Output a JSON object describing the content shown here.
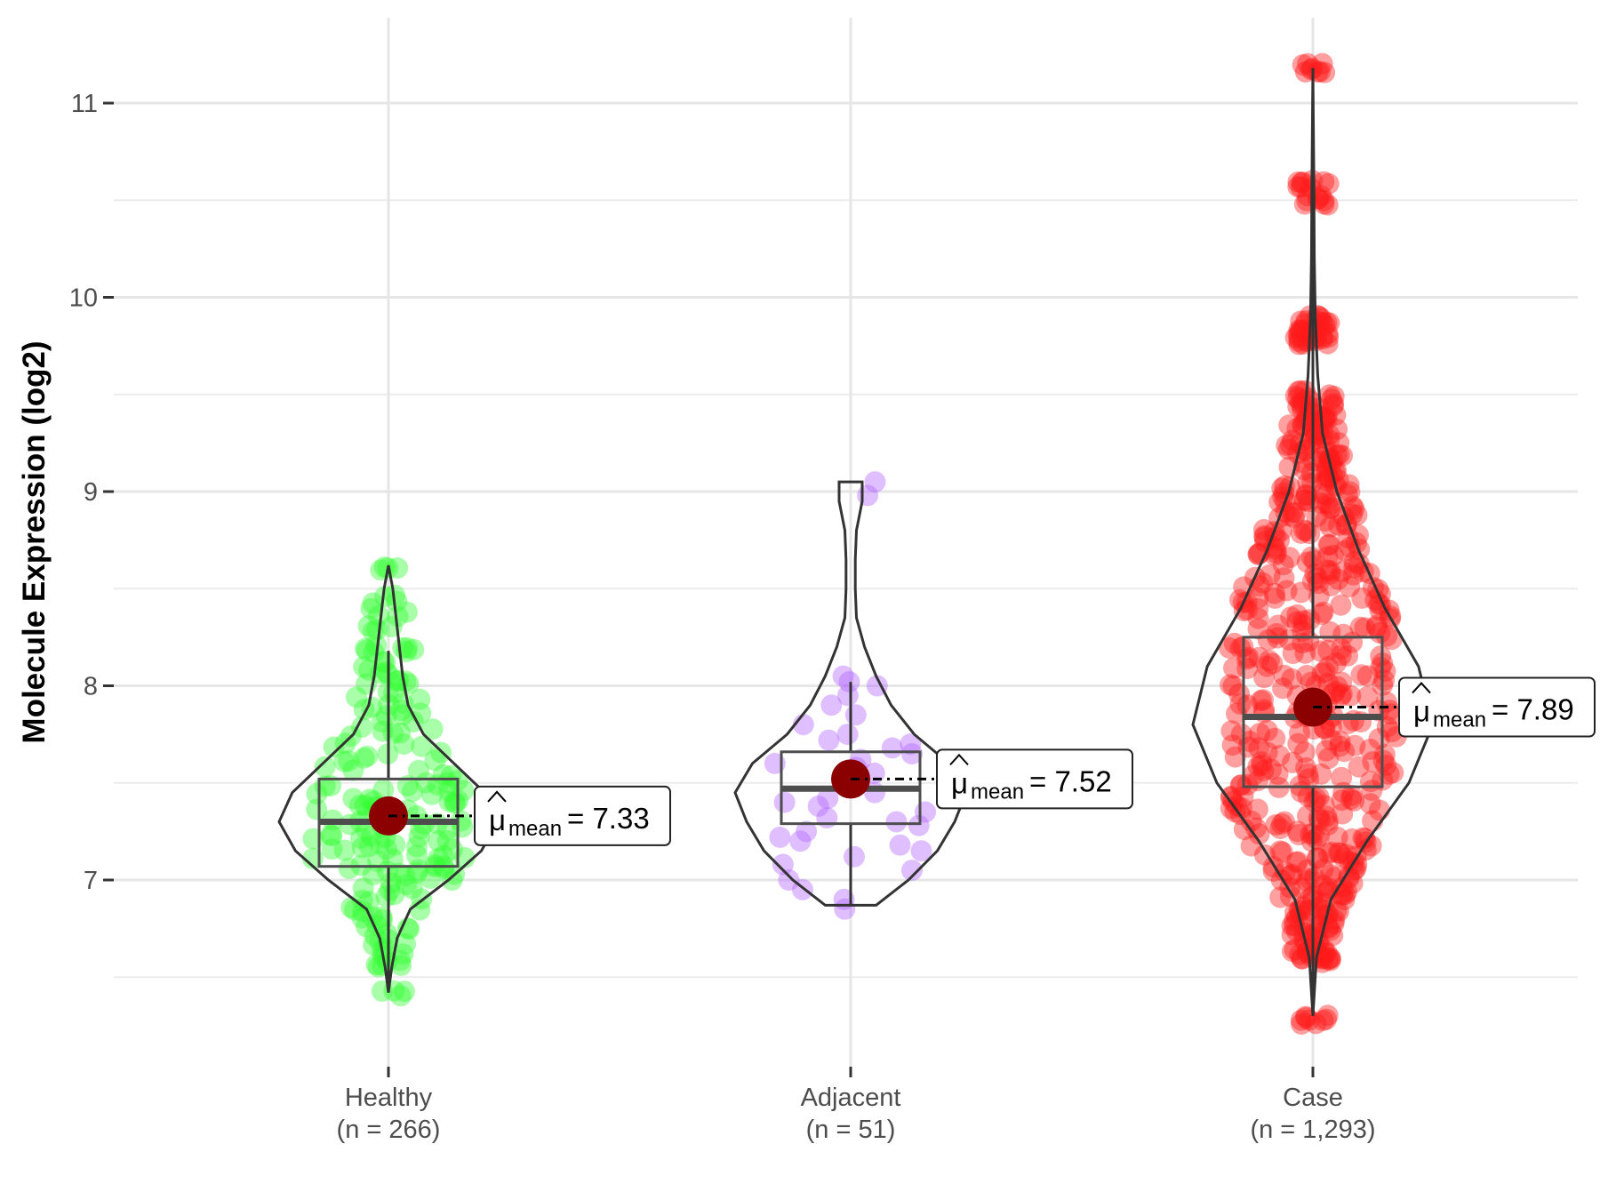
{
  "chart_data": {
    "type": "violin",
    "title": "",
    "xlabel": "",
    "ylabel": "Molecule Expression (log2)",
    "ylim": [
      6,
      11.5
    ],
    "yticks": [
      7,
      8,
      9,
      10,
      11
    ],
    "grid": true,
    "groups": [
      {
        "name": "Healthy",
        "n_label": "(n = 266)",
        "color": "#33ff33",
        "mean": 7.33,
        "mean_label": "= 7.33",
        "median": 7.3,
        "q1": 7.07,
        "q3": 7.52,
        "whisker_low": 6.45,
        "whisker_high": 8.18,
        "min": 6.42,
        "max": 8.62,
        "density": [
          [
            6.42,
            0.0
          ],
          [
            6.55,
            0.03
          ],
          [
            6.7,
            0.08
          ],
          [
            6.85,
            0.2
          ],
          [
            7.0,
            0.55
          ],
          [
            7.15,
            0.85
          ],
          [
            7.3,
            1.0
          ],
          [
            7.45,
            0.88
          ],
          [
            7.6,
            0.6
          ],
          [
            7.75,
            0.32
          ],
          [
            7.9,
            0.18
          ],
          [
            8.05,
            0.13
          ],
          [
            8.2,
            0.1
          ],
          [
            8.35,
            0.07
          ],
          [
            8.5,
            0.04
          ],
          [
            8.62,
            0.0
          ]
        ],
        "points": [
          6.42,
          6.55,
          6.6,
          6.65,
          6.7,
          6.75,
          6.8,
          6.85,
          6.9,
          6.95,
          7.0,
          7.02,
          7.05,
          7.08,
          7.1,
          7.12,
          7.15,
          7.18,
          7.2,
          7.22,
          7.25,
          7.28,
          7.3,
          7.32,
          7.35,
          7.38,
          7.4,
          7.42,
          7.45,
          7.48,
          7.5,
          7.55,
          7.6,
          7.65,
          7.7,
          7.75,
          7.8,
          7.85,
          7.9,
          7.95,
          8.0,
          8.05,
          8.1,
          8.18,
          8.2,
          8.3,
          8.38,
          8.45,
          8.62
        ]
      },
      {
        "name": "Adjacent",
        "n_label": "(n = 51)",
        "color": "#b266ff",
        "mean": 7.52,
        "mean_label": "= 7.52",
        "median": 7.47,
        "q1": 7.29,
        "q3": 7.66,
        "whisker_low": 6.87,
        "whisker_high": 8.02,
        "min": 6.87,
        "max": 9.05,
        "density": [
          [
            6.87,
            0.22
          ],
          [
            7.0,
            0.5
          ],
          [
            7.15,
            0.75
          ],
          [
            7.3,
            0.9
          ],
          [
            7.45,
            1.0
          ],
          [
            7.6,
            0.85
          ],
          [
            7.75,
            0.55
          ],
          [
            7.9,
            0.35
          ],
          [
            8.05,
            0.22
          ],
          [
            8.2,
            0.12
          ],
          [
            8.35,
            0.05
          ],
          [
            8.5,
            0.04
          ],
          [
            8.65,
            0.04
          ],
          [
            8.8,
            0.05
          ],
          [
            8.95,
            0.1
          ],
          [
            9.05,
            0.1
          ]
        ],
        "points": [
          6.85,
          6.9,
          6.95,
          7.0,
          7.05,
          7.08,
          7.12,
          7.15,
          7.18,
          7.2,
          7.22,
          7.25,
          7.28,
          7.3,
          7.32,
          7.35,
          7.38,
          7.4,
          7.42,
          7.45,
          7.48,
          7.5,
          7.52,
          7.55,
          7.58,
          7.6,
          7.62,
          7.65,
          7.68,
          7.7,
          7.72,
          7.75,
          7.8,
          7.85,
          7.9,
          7.95,
          8.0,
          8.02,
          8.05,
          8.98,
          9.05
        ]
      },
      {
        "name": "Case",
        "n_label": "(n = 1,293)",
        "color": "#ff1a1a",
        "mean": 7.89,
        "mean_label": "= 7.89",
        "median": 7.84,
        "q1": 7.48,
        "q3": 8.25,
        "whisker_low": 6.3,
        "whisker_high": 11.18,
        "min": 6.3,
        "max": 11.18,
        "density": [
          [
            6.3,
            0.0
          ],
          [
            6.6,
            0.03
          ],
          [
            6.9,
            0.15
          ],
          [
            7.2,
            0.45
          ],
          [
            7.5,
            0.8
          ],
          [
            7.8,
            1.0
          ],
          [
            8.1,
            0.88
          ],
          [
            8.4,
            0.6
          ],
          [
            8.7,
            0.38
          ],
          [
            9.0,
            0.2
          ],
          [
            9.3,
            0.08
          ],
          [
            9.6,
            0.04
          ],
          [
            9.9,
            0.02
          ],
          [
            10.2,
            0.012
          ],
          [
            10.6,
            0.008
          ],
          [
            11.18,
            0.0
          ]
        ],
        "points": [
          6.28,
          6.6,
          6.62,
          6.65,
          6.7,
          6.75,
          6.8,
          6.85,
          6.9,
          6.95,
          7.0,
          7.05,
          7.1,
          7.15,
          7.2,
          7.25,
          7.3,
          7.35,
          7.4,
          7.45,
          7.5,
          7.55,
          7.6,
          7.65,
          7.7,
          7.75,
          7.8,
          7.85,
          7.9,
          7.95,
          8.0,
          8.05,
          8.1,
          8.15,
          8.2,
          8.25,
          8.3,
          8.35,
          8.4,
          8.45,
          8.5,
          8.55,
          8.6,
          8.65,
          8.7,
          8.75,
          8.8,
          8.85,
          8.9,
          8.95,
          9.0,
          9.05,
          9.1,
          9.15,
          9.2,
          9.25,
          9.3,
          9.35,
          9.4,
          9.45,
          9.5,
          9.78,
          9.8,
          9.85,
          9.88,
          10.5,
          10.58,
          11.18
        ]
      }
    ]
  }
}
